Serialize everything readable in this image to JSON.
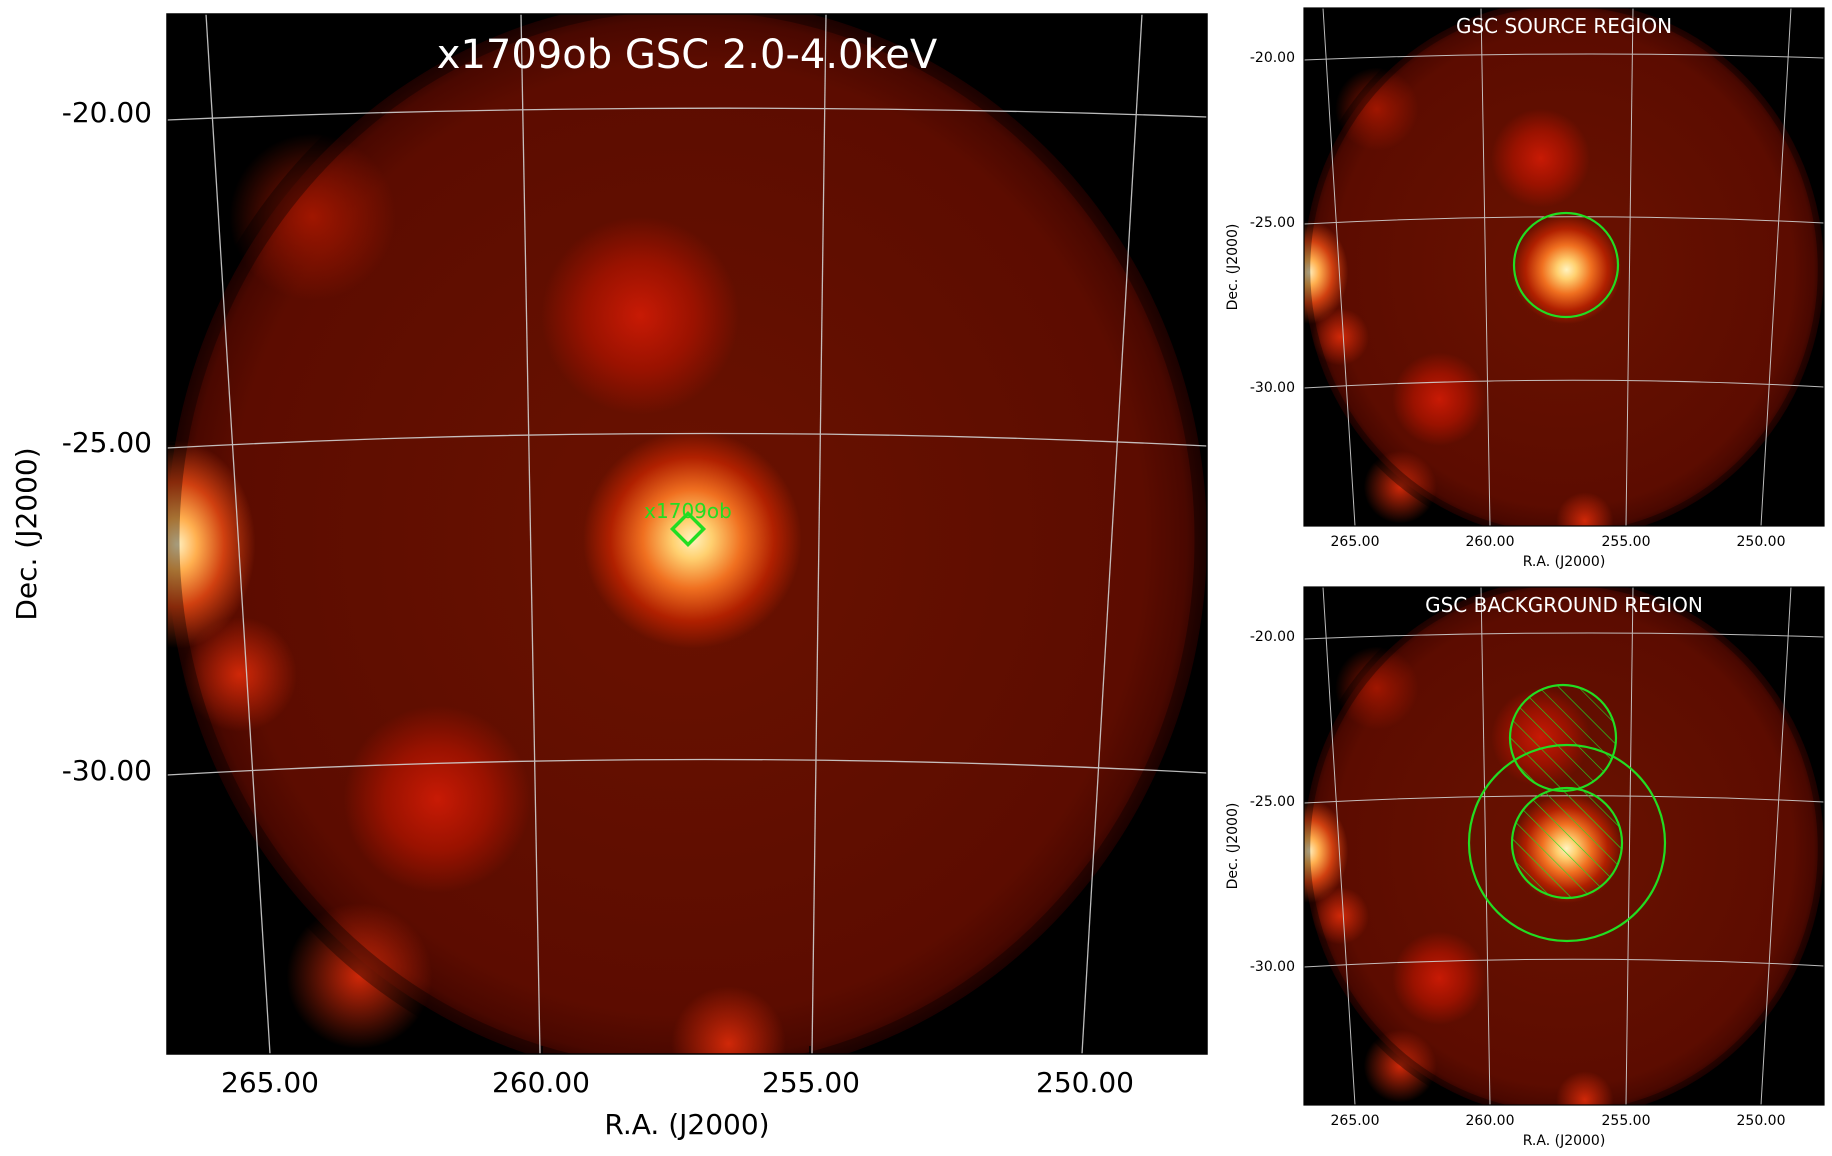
{
  "main_panel": {
    "title": "x1709ob GSC 2.0-4.0keV",
    "xlabel": "R.A. (J2000)",
    "ylabel": "Dec. (J2000)",
    "x_ticks": [
      "265.00",
      "260.00",
      "255.00",
      "250.00"
    ],
    "y_ticks": [
      "-20.00",
      "-25.00",
      "-30.00"
    ],
    "source_label": "x1709ob",
    "marker_color": "#22dd22"
  },
  "source_panel": {
    "title": "GSC SOURCE REGION",
    "xlabel": "R.A. (J2000)",
    "ylabel": "Dec. (J2000)",
    "x_ticks": [
      "265.00",
      "260.00",
      "255.00",
      "250.00"
    ],
    "y_ticks": [
      "-20.00",
      "-25.00",
      "-30.00"
    ]
  },
  "background_panel": {
    "title": "GSC BACKGROUND REGION",
    "xlabel": "R.A. (J2000)",
    "ylabel": "Dec. (J2000)",
    "x_ticks": [
      "265.00",
      "260.00",
      "255.00",
      "250.00"
    ],
    "y_ticks": [
      "-20.00",
      "-25.00",
      "-30.00"
    ]
  },
  "colors": {
    "background": "#000000",
    "image_base": "#5a0a00",
    "grid": "#cfcfcf",
    "region": "#22dd22"
  }
}
